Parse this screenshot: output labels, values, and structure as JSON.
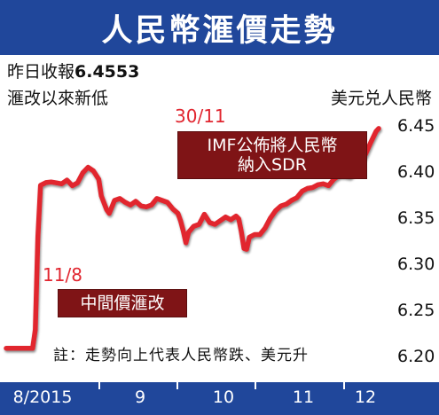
{
  "title": "人民幣滙價走勢",
  "subtitle_prefix": "昨日收報",
  "subtitle_value": "6.4553",
  "subtitle_line2": "滙改以來新低",
  "pair_label": "美元兑人民幣",
  "note": "註：走勢向上代表人民幣跌、美元升",
  "annotations": [
    {
      "date": "30/11",
      "text_line1": "IMF公佈將人民幣",
      "text_line2": "納入SDR"
    },
    {
      "date": "11/8",
      "text_line1": "中間價滙改"
    }
  ],
  "colors": {
    "title_bg": "#20479b",
    "line": "#e1252f",
    "callout_bg": "#7f1416",
    "axis_bg": "#20479b"
  },
  "chart_data": {
    "type": "line",
    "title": "人民幣滙價走勢",
    "ylabel": "美元兑人民幣",
    "xlabel": "",
    "x_tick_labels": [
      "8/2015",
      "9",
      "10",
      "11",
      "12"
    ],
    "y_ticks": [
      6.2,
      6.25,
      6.3,
      6.35,
      6.4,
      6.45
    ],
    "y_tick_labels": [
      "6.20",
      "6.25",
      "6.30",
      "6.35",
      "6.40",
      "6.45"
    ],
    "ylim": [
      6.195,
      6.47
    ],
    "grid": false,
    "x_range_days": [
      0,
      143
    ],
    "series": [
      {
        "values": [
          [
            0,
            6.2097
          ],
          [
            7,
            6.2097
          ],
          [
            10,
            6.2097
          ],
          [
            11,
            6.2298
          ],
          [
            12,
            6.3306
          ],
          [
            13,
            6.3863
          ],
          [
            15,
            6.3893
          ],
          [
            17,
            6.39
          ],
          [
            19,
            6.389
          ],
          [
            21,
            6.388
          ],
          [
            23,
            6.392
          ],
          [
            25,
            6.386
          ],
          [
            27,
            6.389
          ],
          [
            29,
            6.4
          ],
          [
            31,
            6.406
          ],
          [
            33,
            6.402
          ],
          [
            35,
            6.393
          ],
          [
            36,
            6.375
          ],
          [
            38,
            6.36
          ],
          [
            39,
            6.356
          ],
          [
            41,
            6.37
          ],
          [
            43,
            6.372
          ],
          [
            45,
            6.368
          ],
          [
            47,
            6.365
          ],
          [
            49,
            6.369
          ],
          [
            51,
            6.364
          ],
          [
            53,
            6.363
          ],
          [
            55,
            6.365
          ],
          [
            57,
            6.372
          ],
          [
            59,
            6.37
          ],
          [
            61,
            6.368
          ],
          [
            63,
            6.361
          ],
          [
            65,
            6.356
          ],
          [
            66,
            6.348
          ],
          [
            67,
            6.337
          ],
          [
            68,
            6.324
          ],
          [
            69,
            6.3355
          ],
          [
            71,
            6.342
          ],
          [
            73,
            6.344
          ],
          [
            75,
            6.355
          ],
          [
            77,
            6.346
          ],
          [
            79,
            6.344
          ],
          [
            81,
            6.348
          ],
          [
            83,
            6.352
          ],
          [
            85,
            6.349
          ],
          [
            87,
            6.353
          ],
          [
            88,
            6.35
          ],
          [
            89,
            6.336
          ],
          [
            90,
            6.318
          ],
          [
            91,
            6.317
          ],
          [
            92,
            6.33
          ],
          [
            94,
            6.333
          ],
          [
            96,
            6.333
          ],
          [
            98,
            6.34
          ],
          [
            100,
            6.351
          ],
          [
            102,
            6.359
          ],
          [
            104,
            6.364
          ],
          [
            106,
            6.366
          ],
          [
            108,
            6.37
          ],
          [
            110,
            6.373
          ],
          [
            112,
            6.38
          ],
          [
            114,
            6.383
          ],
          [
            116,
            6.384
          ],
          [
            118,
            6.387
          ],
          [
            120,
            6.388
          ],
          [
            122,
            6.386
          ],
          [
            124,
            6.393
          ],
          [
            126,
            6.397
          ],
          [
            128,
            6.397
          ],
          [
            130,
            6.396
          ],
          [
            132,
            6.401
          ],
          [
            134,
            6.41
          ],
          [
            136,
            6.42
          ],
          [
            138,
            6.433
          ],
          [
            140,
            6.445
          ],
          [
            141,
            6.448
          ]
        ]
      }
    ]
  }
}
